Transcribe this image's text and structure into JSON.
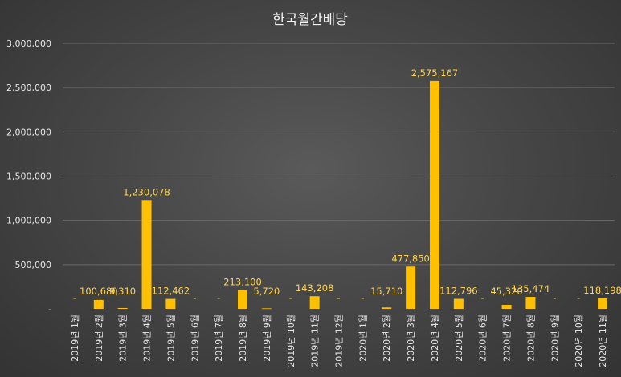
{
  "chart_data": {
    "type": "bar",
    "title": "한국월간배당",
    "xlabel": "",
    "ylabel": "",
    "ylim": [
      0,
      3000000
    ],
    "yticks": [
      "-",
      "500,000",
      "1,000,000",
      "1,500,000",
      "2,000,000",
      "2,500,000",
      "3,000,000"
    ],
    "grid": true,
    "legend": "none",
    "bar_color": "#ffc000",
    "categories": [
      "2019년 1월",
      "2019년 2월",
      "2019년 3월",
      "2019년 4월",
      "2019년 5월",
      "2019년 6월",
      "2019년 7월",
      "2019년 8월",
      "2019년 9월",
      "2019년 10월",
      "2019년 11월",
      "2019년 12월",
      "2020년 1월",
      "2020년 2월",
      "2020년 3월",
      "2020년 4월",
      "2020년 5월",
      "2020년 6월",
      "2020년 7월",
      "2020년 8월",
      "2020년 9월",
      "2020년 10월",
      "2020년 11월"
    ],
    "values": [
      0,
      100680,
      9310,
      1230078,
      112462,
      0,
      0,
      213100,
      5720,
      0,
      143208,
      0,
      0,
      15710,
      477850,
      2575167,
      112796,
      0,
      45320,
      135474,
      0,
      0,
      118198
    ],
    "data_labels": [
      "-",
      "100,680",
      "9,310",
      "1,230,078",
      "112,462",
      "-",
      "-",
      "213,100",
      "5,720",
      "-",
      "143,208",
      "-",
      "-",
      "15,710",
      "477,850",
      "2,575,167",
      "112,796",
      "-",
      "45,320",
      "135,474",
      "-",
      "-",
      "118,198"
    ]
  }
}
